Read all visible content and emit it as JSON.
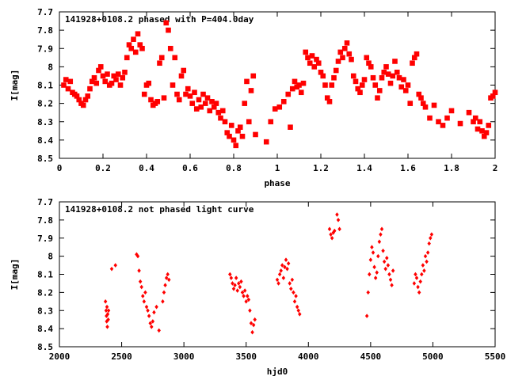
{
  "colors": {
    "points": "#ff0000",
    "axes": "#000000",
    "background": "#ffffff"
  },
  "chart_data": [
    {
      "type": "scatter",
      "title": "141928+0108.2 phased with P=404.0day",
      "xlabel": "phase",
      "ylabel": "I[mag]",
      "xlim": [
        0,
        2
      ],
      "ylim": [
        8.5,
        7.7
      ],
      "y_inverted": true,
      "grid": false,
      "x_ticks": [
        "0",
        "0.2",
        "0.4",
        "0.6",
        "0.8",
        "1",
        "1.2",
        "1.4",
        "1.6",
        "1.8",
        "2"
      ],
      "y_ticks": [
        "7.7",
        "7.8",
        "7.9",
        "8",
        "8.1",
        "8.2",
        "8.3",
        "8.4",
        "8.5"
      ],
      "marker": "filled-square",
      "points": [
        [
          0.02,
          8.1
        ],
        [
          0.03,
          8.07
        ],
        [
          0.04,
          8.12
        ],
        [
          0.05,
          8.08
        ],
        [
          0.06,
          8.14
        ],
        [
          0.07,
          8.15
        ],
        [
          0.08,
          8.16
        ],
        [
          0.09,
          8.18
        ],
        [
          0.1,
          8.2
        ],
        [
          0.11,
          8.21
        ],
        [
          0.12,
          8.18
        ],
        [
          0.13,
          8.16
        ],
        [
          0.14,
          8.12
        ],
        [
          0.15,
          8.08
        ],
        [
          0.16,
          8.06
        ],
        [
          0.17,
          8.09
        ],
        [
          0.18,
          8.02
        ],
        [
          0.19,
          8.0
        ],
        [
          0.2,
          8.05
        ],
        [
          0.21,
          8.08
        ],
        [
          0.22,
          8.04
        ],
        [
          0.23,
          8.1
        ],
        [
          0.24,
          8.09
        ],
        [
          0.25,
          8.05
        ],
        [
          0.26,
          8.07
        ],
        [
          0.27,
          8.04
        ],
        [
          0.28,
          8.1
        ],
        [
          0.29,
          8.06
        ],
        [
          0.3,
          8.03
        ],
        [
          0.31,
          7.95
        ],
        [
          0.32,
          7.88
        ],
        [
          0.33,
          7.9
        ],
        [
          0.34,
          7.85
        ],
        [
          0.35,
          7.92
        ],
        [
          0.36,
          7.82
        ],
        [
          0.37,
          7.88
        ],
        [
          0.38,
          7.9
        ],
        [
          0.39,
          8.15
        ],
        [
          0.4,
          8.1
        ],
        [
          0.41,
          8.09
        ],
        [
          0.42,
          8.18
        ],
        [
          0.43,
          8.21
        ],
        [
          0.44,
          8.2
        ],
        [
          0.45,
          8.19
        ],
        [
          0.46,
          7.98
        ],
        [
          0.47,
          7.95
        ],
        [
          0.48,
          8.17
        ],
        [
          0.49,
          7.76
        ],
        [
          0.5,
          7.8
        ],
        [
          0.51,
          7.9
        ],
        [
          0.52,
          8.1
        ],
        [
          0.53,
          7.95
        ],
        [
          0.54,
          8.15
        ],
        [
          0.55,
          8.18
        ],
        [
          0.56,
          8.05
        ],
        [
          0.57,
          8.02
        ],
        [
          0.58,
          8.15
        ],
        [
          0.59,
          8.12
        ],
        [
          0.6,
          8.16
        ],
        [
          0.61,
          8.2
        ],
        [
          0.62,
          8.14
        ],
        [
          0.63,
          8.23
        ],
        [
          0.64,
          8.18
        ],
        [
          0.65,
          8.22
        ],
        [
          0.66,
          8.15
        ],
        [
          0.67,
          8.2
        ],
        [
          0.68,
          8.17
        ],
        [
          0.69,
          8.24
        ],
        [
          0.7,
          8.19
        ],
        [
          0.71,
          8.22
        ],
        [
          0.72,
          8.2
        ],
        [
          0.73,
          8.25
        ],
        [
          0.74,
          8.28
        ],
        [
          0.75,
          8.24
        ],
        [
          0.76,
          8.3
        ],
        [
          0.77,
          8.36
        ],
        [
          0.78,
          8.38
        ],
        [
          0.79,
          8.32
        ],
        [
          0.8,
          8.4
        ],
        [
          0.81,
          8.43
        ],
        [
          0.82,
          8.35
        ],
        [
          0.83,
          8.33
        ],
        [
          0.84,
          8.38
        ],
        [
          0.85,
          8.2
        ],
        [
          0.86,
          8.08
        ],
        [
          0.87,
          8.3
        ],
        [
          0.88,
          8.13
        ],
        [
          0.89,
          8.05
        ],
        [
          0.9,
          8.37
        ],
        [
          0.95,
          8.41
        ],
        [
          0.97,
          8.3
        ],
        [
          0.99,
          8.23
        ],
        [
          1.01,
          8.22
        ],
        [
          1.03,
          8.19
        ],
        [
          1.05,
          8.15
        ],
        [
          1.06,
          8.33
        ],
        [
          1.07,
          8.12
        ],
        [
          1.08,
          8.08
        ],
        [
          1.09,
          8.11
        ],
        [
          1.1,
          8.1
        ],
        [
          1.11,
          8.14
        ],
        [
          1.12,
          8.09
        ],
        [
          1.13,
          7.92
        ],
        [
          1.14,
          7.95
        ],
        [
          1.15,
          7.98
        ],
        [
          1.16,
          7.94
        ],
        [
          1.17,
          8.0
        ],
        [
          1.18,
          7.96
        ],
        [
          1.19,
          7.98
        ],
        [
          1.2,
          8.03
        ],
        [
          1.21,
          8.05
        ],
        [
          1.22,
          8.1
        ],
        [
          1.23,
          8.17
        ],
        [
          1.24,
          8.19
        ],
        [
          1.25,
          8.1
        ],
        [
          1.26,
          8.06
        ],
        [
          1.27,
          8.02
        ],
        [
          1.28,
          7.97
        ],
        [
          1.29,
          7.92
        ],
        [
          1.3,
          7.95
        ],
        [
          1.31,
          7.9
        ],
        [
          1.32,
          7.87
        ],
        [
          1.33,
          7.93
        ],
        [
          1.34,
          7.96
        ],
        [
          1.35,
          8.05
        ],
        [
          1.36,
          8.08
        ],
        [
          1.37,
          8.12
        ],
        [
          1.38,
          8.14
        ],
        [
          1.39,
          8.1
        ],
        [
          1.4,
          8.07
        ],
        [
          1.41,
          7.95
        ],
        [
          1.42,
          7.98
        ],
        [
          1.43,
          8.0
        ],
        [
          1.44,
          8.06
        ],
        [
          1.45,
          8.1
        ],
        [
          1.46,
          8.17
        ],
        [
          1.47,
          8.13
        ],
        [
          1.48,
          8.06
        ],
        [
          1.49,
          8.03
        ],
        [
          1.5,
          8.0
        ],
        [
          1.51,
          8.04
        ],
        [
          1.52,
          8.09
        ],
        [
          1.53,
          8.05
        ],
        [
          1.54,
          7.97
        ],
        [
          1.55,
          8.03
        ],
        [
          1.56,
          8.06
        ],
        [
          1.57,
          8.11
        ],
        [
          1.58,
          8.07
        ],
        [
          1.59,
          8.13
        ],
        [
          1.6,
          8.1
        ],
        [
          1.61,
          8.2
        ],
        [
          1.62,
          7.98
        ],
        [
          1.63,
          7.95
        ],
        [
          1.64,
          7.93
        ],
        [
          1.65,
          8.15
        ],
        [
          1.66,
          8.17
        ],
        [
          1.67,
          8.2
        ],
        [
          1.68,
          8.22
        ],
        [
          1.7,
          8.28
        ],
        [
          1.72,
          8.21
        ],
        [
          1.74,
          8.3
        ],
        [
          1.76,
          8.32
        ],
        [
          1.78,
          8.28
        ],
        [
          1.8,
          8.24
        ],
        [
          1.84,
          8.31
        ],
        [
          1.88,
          8.25
        ],
        [
          1.9,
          8.3
        ],
        [
          1.91,
          8.28
        ],
        [
          1.92,
          8.34
        ],
        [
          1.93,
          8.3
        ],
        [
          1.94,
          8.35
        ],
        [
          1.95,
          8.38
        ],
        [
          1.96,
          8.36
        ],
        [
          1.97,
          8.32
        ],
        [
          1.98,
          8.17
        ],
        [
          1.99,
          8.16
        ],
        [
          2.0,
          8.14
        ]
      ]
    },
    {
      "type": "scatter",
      "title": "141928+0108.2 not phased light curve",
      "xlabel": "hjd0",
      "ylabel": "I[mag]",
      "xlim": [
        2000,
        5500
      ],
      "ylim": [
        8.5,
        7.7
      ],
      "y_inverted": true,
      "grid": false,
      "x_ticks": [
        "2000",
        "2500",
        "3000",
        "3500",
        "4000",
        "4500",
        "5000",
        "5500"
      ],
      "y_ticks": [
        "7.7",
        "7.8",
        "7.9",
        "8",
        "8.1",
        "8.2",
        "8.3",
        "8.4",
        "8.5"
      ],
      "marker": "filled-diamond",
      "points": [
        [
          2370,
          8.25
        ],
        [
          2375,
          8.3
        ],
        [
          2378,
          8.33
        ],
        [
          2380,
          8.36
        ],
        [
          2382,
          8.28
        ],
        [
          2385,
          8.39
        ],
        [
          2388,
          8.32
        ],
        [
          2392,
          8.35
        ],
        [
          2395,
          8.3
        ],
        [
          2420,
          8.07
        ],
        [
          2450,
          8.05
        ],
        [
          2620,
          7.99
        ],
        [
          2630,
          8.0
        ],
        [
          2640,
          8.08
        ],
        [
          2650,
          8.14
        ],
        [
          2660,
          8.17
        ],
        [
          2670,
          8.22
        ],
        [
          2680,
          8.25
        ],
        [
          2690,
          8.2
        ],
        [
          2700,
          8.28
        ],
        [
          2710,
          8.3
        ],
        [
          2720,
          8.33
        ],
        [
          2730,
          8.37
        ],
        [
          2740,
          8.39
        ],
        [
          2750,
          8.36
        ],
        [
          2760,
          8.31
        ],
        [
          2780,
          8.28
        ],
        [
          2800,
          8.41
        ],
        [
          2830,
          8.25
        ],
        [
          2840,
          8.2
        ],
        [
          2850,
          8.16
        ],
        [
          2860,
          8.12
        ],
        [
          2870,
          8.1
        ],
        [
          2880,
          8.13
        ],
        [
          3370,
          8.1
        ],
        [
          3380,
          8.12
        ],
        [
          3390,
          8.15
        ],
        [
          3400,
          8.18
        ],
        [
          3410,
          8.16
        ],
        [
          3420,
          8.12
        ],
        [
          3430,
          8.19
        ],
        [
          3440,
          8.15
        ],
        [
          3450,
          8.17
        ],
        [
          3460,
          8.14
        ],
        [
          3470,
          8.2
        ],
        [
          3480,
          8.22
        ],
        [
          3490,
          8.19
        ],
        [
          3500,
          8.25
        ],
        [
          3510,
          8.22
        ],
        [
          3520,
          8.24
        ],
        [
          3530,
          8.3
        ],
        [
          3540,
          8.37
        ],
        [
          3550,
          8.42
        ],
        [
          3560,
          8.38
        ],
        [
          3570,
          8.35
        ],
        [
          3750,
          8.13
        ],
        [
          3760,
          8.15
        ],
        [
          3770,
          8.1
        ],
        [
          3780,
          8.08
        ],
        [
          3790,
          8.05
        ],
        [
          3800,
          8.12
        ],
        [
          3810,
          8.06
        ],
        [
          3820,
          8.02
        ],
        [
          3830,
          8.07
        ],
        [
          3840,
          8.04
        ],
        [
          3850,
          8.15
        ],
        [
          3860,
          8.18
        ],
        [
          3870,
          8.13
        ],
        [
          3880,
          8.2
        ],
        [
          3890,
          8.25
        ],
        [
          3900,
          8.22
        ],
        [
          3910,
          8.28
        ],
        [
          3920,
          8.3
        ],
        [
          3930,
          8.32
        ],
        [
          4170,
          7.85
        ],
        [
          4180,
          7.88
        ],
        [
          4190,
          7.9
        ],
        [
          4200,
          7.87
        ],
        [
          4210,
          7.86
        ],
        [
          4230,
          7.77
        ],
        [
          4240,
          7.8
        ],
        [
          4250,
          7.85
        ],
        [
          4470,
          8.33
        ],
        [
          4480,
          8.2
        ],
        [
          4490,
          8.1
        ],
        [
          4500,
          8.02
        ],
        [
          4510,
          7.95
        ],
        [
          4520,
          7.98
        ],
        [
          4530,
          8.06
        ],
        [
          4540,
          8.12
        ],
        [
          4550,
          8.09
        ],
        [
          4560,
          8.0
        ],
        [
          4570,
          7.92
        ],
        [
          4580,
          7.88
        ],
        [
          4590,
          7.85
        ],
        [
          4600,
          7.97
        ],
        [
          4610,
          8.03
        ],
        [
          4620,
          8.07
        ],
        [
          4630,
          8.01
        ],
        [
          4640,
          8.05
        ],
        [
          4650,
          8.1
        ],
        [
          4660,
          8.13
        ],
        [
          4670,
          8.16
        ],
        [
          4680,
          8.08
        ],
        [
          4850,
          8.15
        ],
        [
          4860,
          8.1
        ],
        [
          4870,
          8.12
        ],
        [
          4880,
          8.17
        ],
        [
          4890,
          8.2
        ],
        [
          4900,
          8.14
        ],
        [
          4910,
          8.1
        ],
        [
          4920,
          8.05
        ],
        [
          4930,
          8.08
        ],
        [
          4940,
          8.0
        ],
        [
          4950,
          8.03
        ],
        [
          4960,
          7.98
        ],
        [
          4970,
          7.93
        ],
        [
          4980,
          7.9
        ],
        [
          4990,
          7.88
        ]
      ]
    }
  ]
}
